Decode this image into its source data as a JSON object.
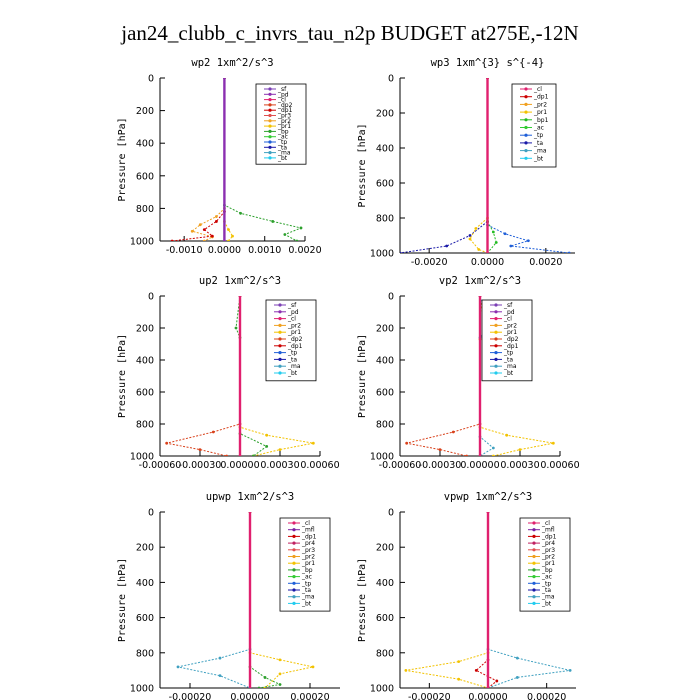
{
  "figure": {
    "title": "jan24_clubb_c_invrs_tau_n2p  BUDGET at275E,-12N"
  },
  "colors": {
    "_sf": "#7b3fb5",
    "_pd": "#8b2fb0",
    "_cl": "#e0206e",
    "_mfl": "#7b1fa2",
    "_dp1": "#cc0000",
    "_dp2": "#d8401a",
    "_dp4": "#b0103a",
    "_pr1": "#f2c200",
    "_pr2": "#f0a020",
    "_pr3": "#e05050",
    "_pr4": "#c02060",
    "_bp": "#2ca02c",
    "_bp1": "#22bb22",
    "_ac": "#33cc33",
    "_tp": "#1f5fd8",
    "_ta": "#1a1aa8",
    "_ma": "#3fa0c0",
    "_bt": "#22ccee"
  },
  "chart_data": [
    {
      "type": "line",
      "title": "wp2  1xm^2/s^3",
      "ylabel": "Pressure [hPa]",
      "ylim": [
        1000,
        0
      ],
      "yticks": [
        0,
        200,
        400,
        600,
        800,
        1000
      ],
      "xlim": [
        -0.0016,
        0.002
      ],
      "xticks": [
        -0.001,
        0.0,
        0.001,
        0.002
      ],
      "xtick_labels": [
        "-0.0010",
        "0.0000",
        "0.0010",
        "0.0020"
      ],
      "legend": [
        "_sf",
        "_pd",
        "_cl",
        "_dp2",
        "_dp1",
        "_pr3",
        "_pr2",
        "_pr1",
        "_bp",
        "_ac",
        "_tp",
        "_ta",
        "_ma",
        "_bt"
      ],
      "series": [
        {
          "name": "_bp",
          "points": [
            [
              0,
              0
            ],
            [
              0,
              780
            ],
            [
              0.0004,
              830
            ],
            [
              0.0012,
              880
            ],
            [
              0.0019,
              920
            ],
            [
              0.0015,
              960
            ],
            [
              0.0018,
              1000
            ]
          ]
        },
        {
          "name": "_pr2",
          "points": [
            [
              0,
              0
            ],
            [
              0,
              800
            ],
            [
              -0.0002,
              850
            ],
            [
              -0.0006,
              900
            ],
            [
              -0.0008,
              940
            ],
            [
              -0.0003,
              975
            ],
            [
              -0.0005,
              1000
            ]
          ]
        },
        {
          "name": "_dp1",
          "points": [
            [
              0,
              0
            ],
            [
              0,
              820
            ],
            [
              -0.0002,
              880
            ],
            [
              -0.0005,
              930
            ],
            [
              -0.0003,
              970
            ],
            [
              -0.0013,
              1000
            ]
          ]
        },
        {
          "name": "_pr1",
          "points": [
            [
              0,
              0
            ],
            [
              0,
              880
            ],
            [
              0.0001,
              930
            ],
            [
              0.0002,
              970
            ],
            [
              0.0001,
              1000
            ]
          ]
        },
        {
          "name": "_pd",
          "points": [
            [
              0,
              0
            ],
            [
              0,
              1000
            ]
          ]
        }
      ]
    },
    {
      "type": "line",
      "title": "wp3  1xm^{3} s^{-4}",
      "ylabel": "Pressure [hPa]",
      "ylim": [
        1000,
        0
      ],
      "yticks": [
        0,
        200,
        400,
        600,
        800,
        1000
      ],
      "xlim": [
        -0.003,
        0.003
      ],
      "xticks": [
        -0.002,
        0.0,
        0.002
      ],
      "xtick_labels": [
        "-0.0020",
        "0.0000",
        "0.0020"
      ],
      "legend": [
        "_cl",
        "_dp1",
        "_pr2",
        "_pr1",
        "_bp1",
        "_ac",
        "_tp",
        "_ta",
        "_ma",
        "_bt"
      ],
      "series": [
        {
          "name": "_ta",
          "points": [
            [
              0,
              0
            ],
            [
              0,
              820
            ],
            [
              -0.0006,
              900
            ],
            [
              -0.0014,
              960
            ],
            [
              -0.003,
              1000
            ]
          ]
        },
        {
          "name": "_tp",
          "points": [
            [
              0,
              0
            ],
            [
              0,
              840
            ],
            [
              0.0006,
              890
            ],
            [
              0.0014,
              930
            ],
            [
              0.0008,
              960
            ],
            [
              0.0028,
              1000
            ]
          ]
        },
        {
          "name": "_pr1",
          "points": [
            [
              0,
              0
            ],
            [
              0,
              800
            ],
            [
              -0.0004,
              860
            ],
            [
              -0.0006,
              920
            ],
            [
              -0.0003,
              980
            ],
            [
              0,
              1000
            ]
          ]
        },
        {
          "name": "_bp1",
          "points": [
            [
              0,
              0
            ],
            [
              0,
              820
            ],
            [
              0.0002,
              880
            ],
            [
              0.0003,
              940
            ],
            [
              0,
              1000
            ]
          ]
        },
        {
          "name": "_cl",
          "points": [
            [
              0,
              0
            ],
            [
              0,
              1000
            ]
          ]
        }
      ]
    },
    {
      "type": "line",
      "title": "up2  1xm^2/s^3",
      "ylabel": "Pressure [hPa]",
      "ylim": [
        1000,
        0
      ],
      "yticks": [
        0,
        200,
        400,
        600,
        800,
        1000
      ],
      "xlim": [
        -0.0006,
        0.0006
      ],
      "xticks": [
        -0.0006,
        -0.0003,
        0.0,
        0.0003,
        0.0006
      ],
      "xtick_labels": [
        "-0.00060",
        "-0.00030",
        "0.00000",
        "0.00030",
        "0.00060"
      ],
      "legend": [
        "_sf",
        "_pd",
        "_cl",
        "_pr2",
        "_pr1",
        "_dp2",
        "_dp1",
        "_tp",
        "_ta",
        "_ma",
        "_bt"
      ],
      "series": [
        {
          "name": "_pr1",
          "points": [
            [
              0,
              0
            ],
            [
              0,
              820
            ],
            [
              0.0002,
              870
            ],
            [
              0.00055,
              920
            ],
            [
              0.0003,
              960
            ],
            [
              0.0001,
              1000
            ]
          ]
        },
        {
          "name": "_dp2",
          "points": [
            [
              0,
              0
            ],
            [
              0,
              800
            ],
            [
              -0.0002,
              850
            ],
            [
              -0.00055,
              920
            ],
            [
              -0.0003,
              960
            ],
            [
              -0.0001,
              1000
            ]
          ]
        },
        {
          "name": "_bp",
          "points": [
            [
              0,
              0
            ],
            [
              -3e-05,
              200
            ],
            [
              0,
              260
            ],
            [
              0,
              860
            ],
            [
              0.0002,
              940
            ],
            [
              0.0001,
              1000
            ]
          ]
        },
        {
          "name": "_cl",
          "points": [
            [
              0,
              0
            ],
            [
              0,
              1000
            ]
          ]
        }
      ]
    },
    {
      "type": "line",
      "title": "vp2  1xm^2/s^3",
      "ylabel": "Pressure [hPa]",
      "ylim": [
        1000,
        0
      ],
      "yticks": [
        0,
        200,
        400,
        600,
        800,
        1000
      ],
      "xlim": [
        -0.0006,
        0.0006
      ],
      "xticks": [
        -0.0006,
        -0.0003,
        0.0,
        0.0003,
        0.0006
      ],
      "xtick_labels": [
        "-0.00060",
        "-0.00030",
        "0.00000",
        "0.00030",
        "0.00060"
      ],
      "legend": [
        "_sf",
        "_pd",
        "_cl",
        "_pr2",
        "_pr1",
        "_dp2",
        "_dp1",
        "_tp",
        "_ta",
        "_ma",
        "_bt"
      ],
      "series": [
        {
          "name": "_pr1",
          "points": [
            [
              0,
              0
            ],
            [
              0,
              820
            ],
            [
              0.0002,
              870
            ],
            [
              0.00055,
              920
            ],
            [
              0.0003,
              960
            ],
            [
              0.0001,
              1000
            ]
          ]
        },
        {
          "name": "_dp2",
          "points": [
            [
              0,
              0
            ],
            [
              0,
              800
            ],
            [
              -0.0002,
              850
            ],
            [
              -0.00055,
              920
            ],
            [
              -0.0003,
              960
            ],
            [
              -0.0001,
              1000
            ]
          ]
        },
        {
          "name": "_pr2",
          "points": [
            [
              0,
              0
            ],
            [
              3e-05,
              180
            ],
            [
              5e-05,
              220
            ],
            [
              0,
              270
            ],
            [
              0,
              1000
            ]
          ]
        },
        {
          "name": "_ma",
          "points": [
            [
              0,
              0
            ],
            [
              6e-05,
              200
            ],
            [
              0,
              260
            ],
            [
              0,
              880
            ],
            [
              0.0001,
              950
            ],
            [
              0,
              1000
            ]
          ]
        },
        {
          "name": "_cl",
          "points": [
            [
              0,
              0
            ],
            [
              0,
              1000
            ]
          ]
        }
      ]
    },
    {
      "type": "line",
      "title": "upwp  1xm^2/s^3",
      "ylabel": "Pressure [hPa]",
      "ylim": [
        1000,
        0
      ],
      "yticks": [
        0,
        200,
        400,
        600,
        800,
        1000
      ],
      "xlim": [
        -0.0003,
        0.0003
      ],
      "xticks": [
        -0.0002,
        0.0,
        0.0002
      ],
      "xtick_labels": [
        "-0.00020",
        "0.00000",
        "0.00020"
      ],
      "legend": [
        "_cl",
        "_mfl",
        "_dp1",
        "_pr4",
        "_pr3",
        "_pr2",
        "_pr1",
        "_bp",
        "_ac",
        "_tp",
        "_ta",
        "_ma",
        "_bt"
      ],
      "series": [
        {
          "name": "_ma",
          "points": [
            [
              0,
              0
            ],
            [
              0,
              780
            ],
            [
              -0.0001,
              830
            ],
            [
              -0.00024,
              880
            ],
            [
              -0.0001,
              930
            ],
            [
              0,
              1000
            ]
          ]
        },
        {
          "name": "_pr1",
          "points": [
            [
              0,
              0
            ],
            [
              0,
              800
            ],
            [
              0.0001,
              840
            ],
            [
              0.00021,
              880
            ],
            [
              0.0001,
              920
            ],
            [
              5e-05,
              1000
            ]
          ]
        },
        {
          "name": "_bp",
          "points": [
            [
              0,
              0
            ],
            [
              0,
              880
            ],
            [
              5e-05,
              940
            ],
            [
              0.0001,
              980
            ],
            [
              3e-05,
              1000
            ]
          ]
        },
        {
          "name": "_cl",
          "points": [
            [
              0,
              0
            ],
            [
              0,
              1000
            ]
          ]
        }
      ]
    },
    {
      "type": "line",
      "title": "vpwp  1xm^2/s^3",
      "ylabel": "Pressure [hPa]",
      "ylim": [
        1000,
        0
      ],
      "yticks": [
        0,
        200,
        400,
        600,
        800,
        1000
      ],
      "xlim": [
        -0.0003,
        0.0003
      ],
      "xticks": [
        -0.0002,
        0.0,
        0.0002
      ],
      "xtick_labels": [
        "-0.00020",
        "0.00000",
        "0.00020"
      ],
      "legend": [
        "_cl",
        "_mfl",
        "_dp1",
        "_pr4",
        "_pr3",
        "_pr2",
        "_pr1",
        "_bp",
        "_ac",
        "_tp",
        "_ta",
        "_ma",
        "_bt"
      ],
      "series": [
        {
          "name": "_pr1",
          "points": [
            [
              0,
              0
            ],
            [
              0,
              800
            ],
            [
              -0.0001,
              850
            ],
            [
              -0.00028,
              900
            ],
            [
              -0.0001,
              950
            ],
            [
              0,
              1000
            ]
          ]
        },
        {
          "name": "_ma",
          "points": [
            [
              0,
              0
            ],
            [
              0,
              780
            ],
            [
              0.0001,
              830
            ],
            [
              0.00028,
              900
            ],
            [
              0.0001,
              940
            ],
            [
              0,
              1000
            ]
          ]
        },
        {
          "name": "_dp1",
          "points": [
            [
              0,
              0
            ],
            [
              0,
              840
            ],
            [
              -4e-05,
              900
            ],
            [
              3e-05,
              960
            ],
            [
              0,
              1000
            ]
          ]
        },
        {
          "name": "_cl",
          "points": [
            [
              0,
              0
            ],
            [
              0,
              1000
            ]
          ]
        }
      ]
    }
  ]
}
